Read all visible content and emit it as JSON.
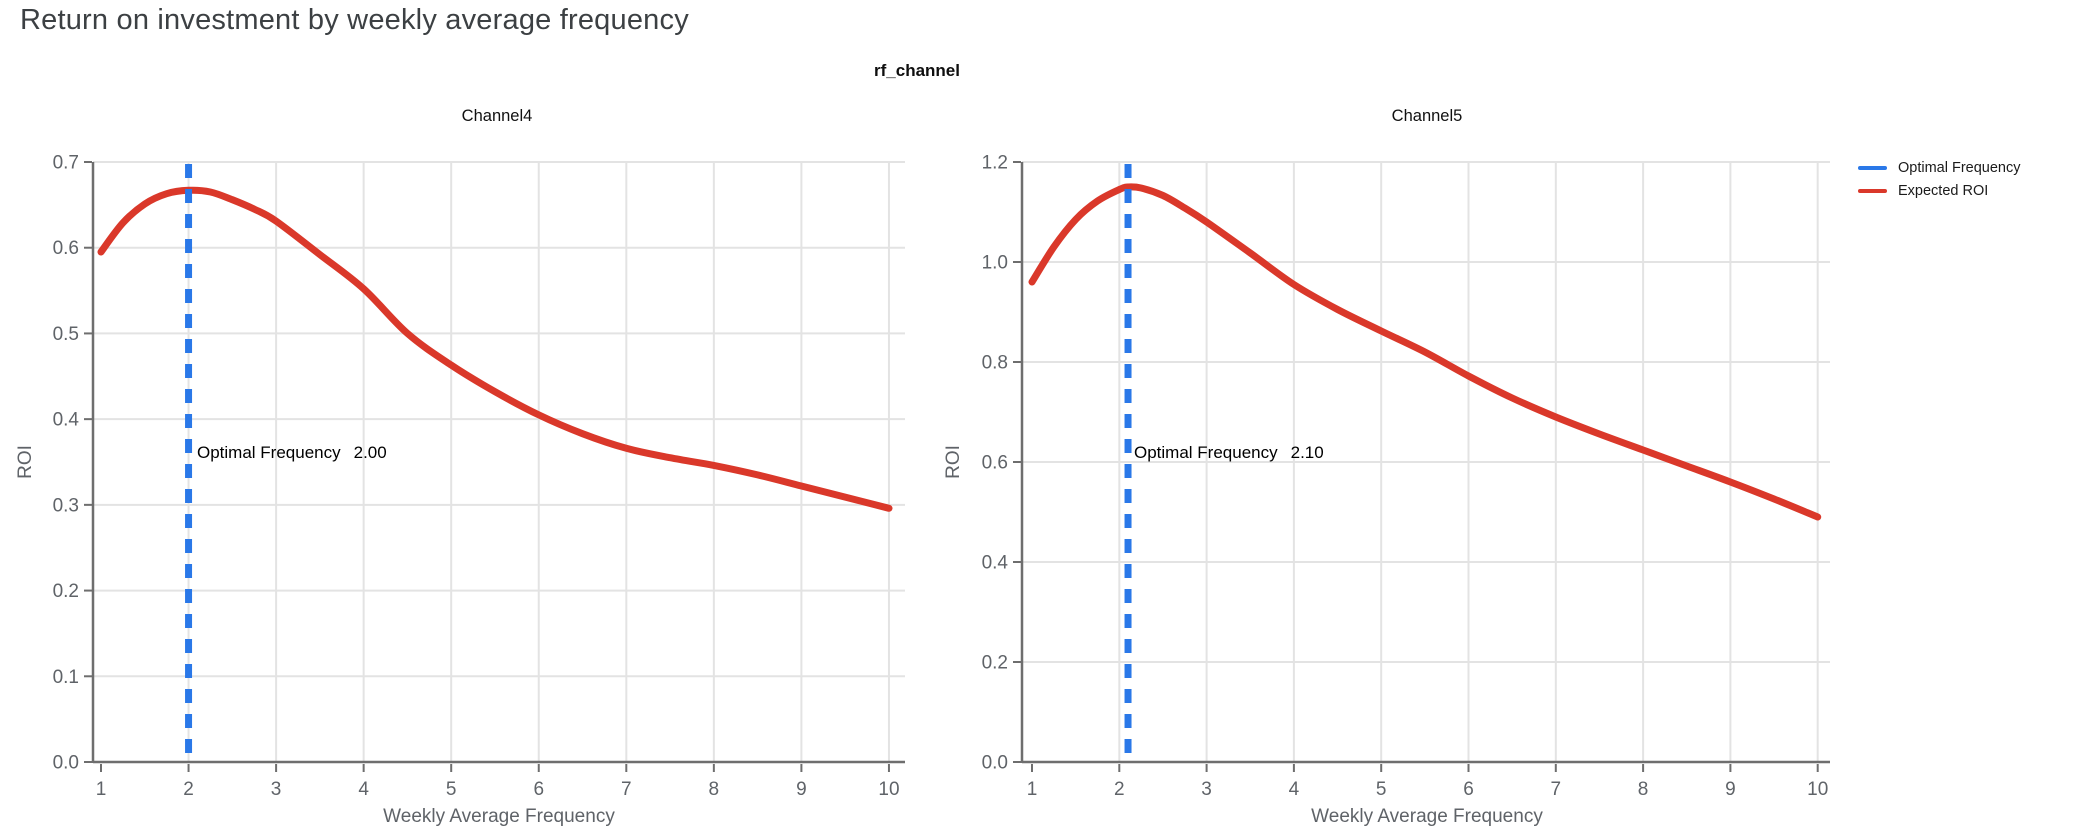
{
  "header": {
    "title": "Return on investment by weekly average frequency"
  },
  "figure": {
    "group_title": "rf_channel"
  },
  "legend": {
    "position": "top-right",
    "items": [
      {
        "label": "Optimal Frequency",
        "color": "#2a78e8"
      },
      {
        "label": "Expected ROI",
        "color": "#da382a"
      }
    ]
  },
  "palette": {
    "optimal_frequency_blue": "#2a78e8",
    "expected_roi_red": "#da382a",
    "gridline": "#e3e3e3",
    "axis_line": "#6e6e6e",
    "tick_text": "#5f6368",
    "title_text": "#3c4043"
  },
  "chart_data": [
    {
      "type": "line",
      "subplot": "Channel4",
      "xlabel": "Weekly Average Frequency",
      "ylabel": "ROI",
      "xlim": [
        0.91,
        10.19
      ],
      "ylim": [
        0.0,
        0.7
      ],
      "x_ticks": [
        1,
        2,
        3,
        4,
        5,
        6,
        7,
        8,
        9,
        10
      ],
      "y_ticks": [
        0.0,
        0.1,
        0.2,
        0.3,
        0.4,
        0.5,
        0.6,
        0.7
      ],
      "grid": true,
      "optimal_frequency": 2.0,
      "annotation_label": "Optimal Frequency",
      "annotation_value": "2.00",
      "series": [
        {
          "name": "Expected ROI",
          "style": "solid",
          "color": "#da382a",
          "x": [
            1,
            1.25,
            1.5,
            1.75,
            2,
            2.25,
            2.5,
            2.75,
            3,
            3.5,
            4,
            4.5,
            5,
            5.5,
            6,
            6.5,
            7,
            7.5,
            8,
            8.5,
            9,
            9.5,
            10
          ],
          "y": [
            0.595,
            0.629,
            0.651,
            0.663,
            0.667,
            0.665,
            0.656,
            0.645,
            0.631,
            0.592,
            0.552,
            0.5,
            0.463,
            0.432,
            0.405,
            0.383,
            0.366,
            0.355,
            0.346,
            0.335,
            0.322,
            0.309,
            0.296
          ]
        },
        {
          "name": "Optimal Frequency",
          "style": "dashed-vertical",
          "color": "#2a78e8",
          "x": 2.0
        }
      ]
    },
    {
      "type": "line",
      "subplot": "Channel5",
      "xlabel": "Weekly Average Frequency",
      "ylabel": "ROI",
      "xlim": [
        0.91,
        10.19
      ],
      "ylim": [
        0.0,
        1.2
      ],
      "x_ticks": [
        1,
        2,
        3,
        4,
        5,
        6,
        7,
        8,
        9,
        10
      ],
      "y_ticks": [
        0.0,
        0.2,
        0.4,
        0.6,
        0.8,
        1.0,
        1.2
      ],
      "grid": true,
      "optimal_frequency": 2.1,
      "annotation_label": "Optimal Frequency",
      "annotation_value": "2.10",
      "series": [
        {
          "name": "Expected ROI",
          "style": "solid",
          "color": "#da382a",
          "x": [
            1,
            1.25,
            1.5,
            1.75,
            2,
            2.1,
            2.25,
            2.5,
            2.75,
            3,
            3.5,
            4,
            4.5,
            5,
            5.5,
            6,
            6.5,
            7,
            7.5,
            8,
            8.5,
            9,
            9.5,
            10
          ],
          "y": [
            0.96,
            1.03,
            1.085,
            1.122,
            1.145,
            1.15,
            1.148,
            1.133,
            1.108,
            1.08,
            1.018,
            0.955,
            0.905,
            0.862,
            0.82,
            0.772,
            0.728,
            0.69,
            0.656,
            0.624,
            0.592,
            0.56,
            0.526,
            0.49
          ]
        },
        {
          "name": "Optimal Frequency",
          "style": "dashed-vertical",
          "color": "#2a78e8",
          "x": 2.1
        }
      ]
    }
  ]
}
